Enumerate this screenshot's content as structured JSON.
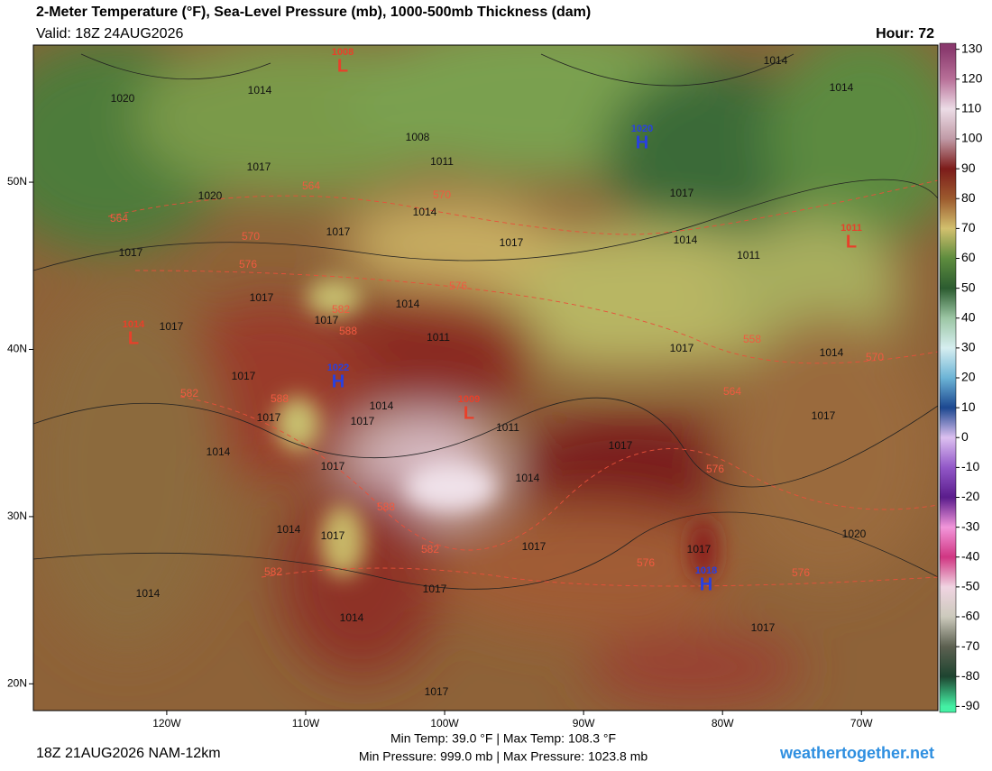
{
  "header": {
    "title": "2-Meter Temperature (°F), Sea-Level Pressure (mb), 1000-500mb Thickness (dam)",
    "valid": "Valid: 18Z 24AUG2026",
    "hour": "Hour: 72"
  },
  "map": {
    "xlim": [
      -129.6,
      -64.5
    ],
    "ylim": [
      18.4,
      58.2
    ],
    "xticks": [
      {
        "value": -120,
        "label": "120W"
      },
      {
        "value": -110,
        "label": "110W"
      },
      {
        "value": -100,
        "label": "100W"
      },
      {
        "value": -90,
        "label": "90W"
      },
      {
        "value": -80,
        "label": "80W"
      },
      {
        "value": -70,
        "label": "70W"
      }
    ],
    "yticks": [
      {
        "value": 20,
        "label": "20N"
      },
      {
        "value": 30,
        "label": "30N"
      },
      {
        "value": 40,
        "label": "40N"
      },
      {
        "value": 50,
        "label": "50N"
      }
    ],
    "pressure_centers": [
      {
        "label": "L",
        "value": 1008,
        "color": "#e8402a"
      },
      {
        "label": "H",
        "value": 1020,
        "color": "#2840e0"
      },
      {
        "label": "L",
        "value": 1014,
        "color": "#e8402a"
      },
      {
        "label": "H",
        "value": 1022,
        "color": "#2840e0"
      },
      {
        "label": "L",
        "value": 1009,
        "color": "#e8402a"
      },
      {
        "label": "L",
        "value": 1011,
        "color": "#e8402a"
      },
      {
        "label": "H",
        "value": 1018,
        "color": "#2840e0"
      }
    ],
    "isobar_labels": [
      1020,
      1014,
      1008,
      1011,
      1017,
      1020,
      1014,
      1017,
      1017,
      1014,
      1011,
      1017,
      1014,
      1014,
      1017,
      1017,
      1014,
      1017,
      1017,
      1011,
      1017,
      1014,
      1017,
      1017,
      1011,
      1014,
      1017,
      1017,
      1014,
      1017,
      1014,
      1017,
      1020,
      1017,
      1014,
      1017,
      1017,
      1014,
      1017,
      1014,
      1017,
      1017
    ],
    "thickness_labels": [
      564,
      570,
      570,
      576,
      576,
      582,
      588,
      582,
      588,
      576,
      588,
      582,
      582,
      576,
      576,
      558,
      564,
      570,
      564
    ]
  },
  "colorbar": {
    "lim": [
      -92,
      132
    ],
    "ticks": [
      130,
      120,
      110,
      100,
      90,
      80,
      70,
      60,
      50,
      40,
      30,
      20,
      10,
      0,
      -10,
      -20,
      -30,
      -40,
      -50,
      -60,
      -70,
      -80,
      -90
    ],
    "colors": [
      "#8a3a6e",
      "#b87098",
      "#ecdce6",
      "#c09aa6",
      "#7c1c1a",
      "#9c5a2e",
      "#d2c06e",
      "#5e8c3e",
      "#2c5c30",
      "#9cc6a4",
      "#d6eef0",
      "#6cb4d6",
      "#1c4890",
      "#dcc0f0",
      "#9258c8",
      "#5a1c8c",
      "#f296da",
      "#d03682",
      "#f0d4e2",
      "#cccabc",
      "#5c6050",
      "#1e4430",
      "#44f0a4"
    ]
  },
  "footer": {
    "run": "18Z 21AUG2026 NAM-12km",
    "temps": "Min Temp:  39.0 °F | Max Temp: 108.3 °F",
    "pressures": "Min Pressure: 999.0 mb | Max Pressure: 1023.8 mb",
    "site": "weathertogether.net"
  }
}
